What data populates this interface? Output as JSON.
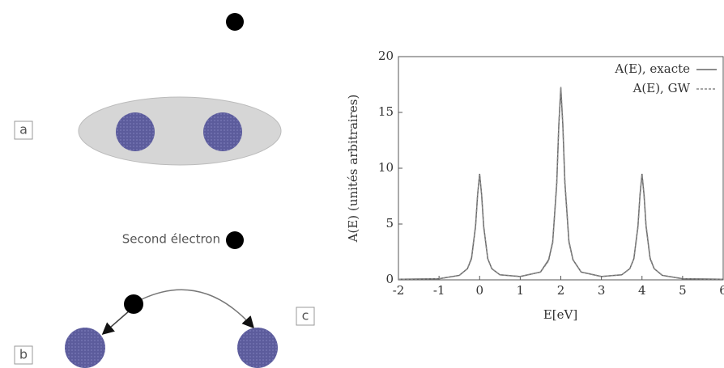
{
  "diagram": {
    "label_a": "a",
    "label_b": "b",
    "label_c": "c",
    "electron_label": "Second électron"
  },
  "chart_data": {
    "type": "line",
    "xlabel": "E[eV]",
    "ylabel": "A(E) (unités arbitraires)",
    "xlim": [
      -2,
      6
    ],
    "ylim": [
      0,
      20
    ],
    "xticks": [
      -2,
      -1,
      0,
      1,
      2,
      3,
      4,
      5,
      6
    ],
    "yticks": [
      0,
      5,
      10,
      15,
      20
    ],
    "legend": "top-right",
    "x": [
      -2,
      -1,
      -0.5,
      -0.3,
      -0.2,
      -0.1,
      -0.05,
      0,
      0.05,
      0.1,
      0.2,
      0.3,
      0.5,
      1,
      1.5,
      1.7,
      1.8,
      1.9,
      1.95,
      2,
      2.05,
      2.1,
      2.2,
      2.3,
      2.5,
      3,
      3.5,
      3.7,
      3.8,
      3.9,
      3.95,
      4,
      4.05,
      4.1,
      4.2,
      4.3,
      4.5,
      5,
      6
    ],
    "series": [
      {
        "name": "A(E), exacte",
        "color": "#666666",
        "dash": false,
        "values": [
          0.05,
          0.1,
          0.4,
          1,
          1.9,
          4.8,
          7.6,
          9.5,
          7.6,
          4.8,
          1.9,
          1,
          0.45,
          0.3,
          0.7,
          1.8,
          3.4,
          8.7,
          13.8,
          17.2,
          13.8,
          8.7,
          3.4,
          1.8,
          0.7,
          0.3,
          0.45,
          1,
          1.9,
          4.8,
          7.6,
          9.5,
          7.6,
          4.8,
          1.9,
          1,
          0.4,
          0.1,
          0.05
        ]
      },
      {
        "name": "A(E), GW",
        "color": "#888888",
        "dash": true,
        "values": [
          0.05,
          0.1,
          0.4,
          1,
          2,
          4.9,
          7.7,
          9.4,
          7.5,
          4.7,
          1.9,
          1,
          0.45,
          0.3,
          0.7,
          1.7,
          3.3,
          8.5,
          13.9,
          17.3,
          14,
          8.9,
          3.5,
          1.8,
          0.7,
          0.3,
          0.45,
          1,
          1.9,
          4.7,
          7.5,
          9.4,
          7.7,
          4.9,
          2,
          1,
          0.4,
          0.1,
          0.05
        ]
      }
    ]
  }
}
